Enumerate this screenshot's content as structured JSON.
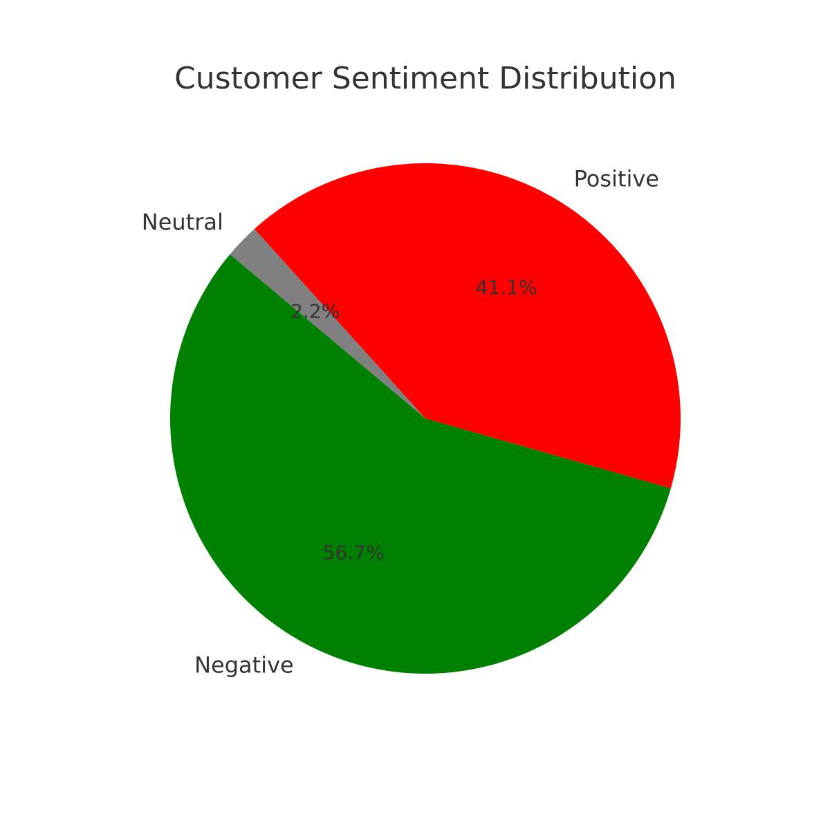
{
  "chart_data": {
    "type": "pie",
    "title": "Customer Sentiment Distribution",
    "categories": [
      "Positive",
      "Neutral",
      "Negative"
    ],
    "values": [
      41.1,
      2.2,
      56.7
    ],
    "value_labels": [
      "41.1%",
      "2.2%",
      "56.7%"
    ],
    "colors": [
      "#ff0000",
      "#808080",
      "#008000"
    ],
    "start_angle_deg": -15.9,
    "direction": "counterclockwise"
  }
}
